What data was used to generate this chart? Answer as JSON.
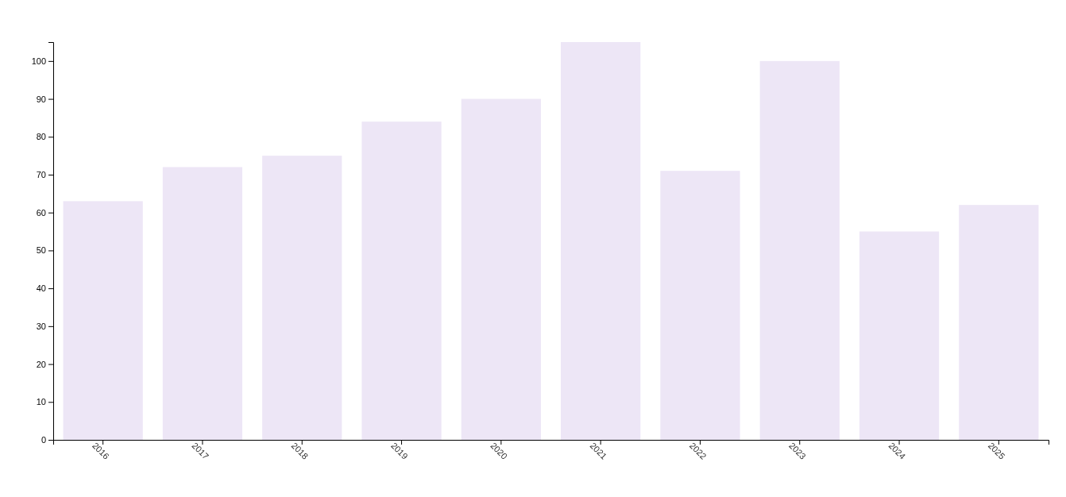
{
  "chart_data": {
    "type": "bar",
    "categories": [
      "2016",
      "2017",
      "2018",
      "2019",
      "2020",
      "2021",
      "2022",
      "2023",
      "2024",
      "2025"
    ],
    "values": [
      63,
      72,
      75,
      84,
      90,
      105,
      71,
      100,
      55,
      62
    ],
    "color": "#ede6f6",
    "ylim": [
      0,
      105
    ],
    "yticks": [
      0,
      10,
      20,
      30,
      40,
      50,
      60,
      70,
      80,
      90,
      100
    ],
    "grid": false
  }
}
